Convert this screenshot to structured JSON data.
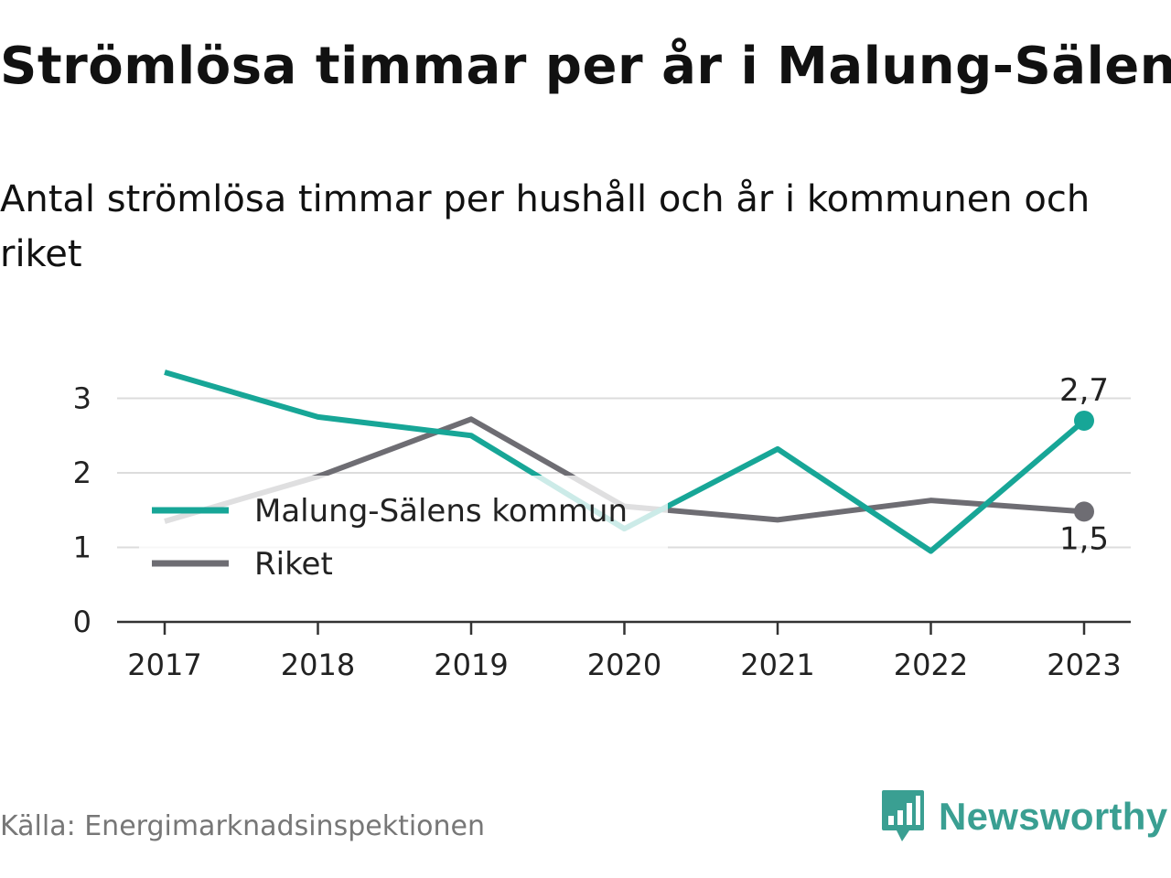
{
  "title": "Strömlösa timmar per år i Malung-Sälen",
  "subtitle": "Antal strömlösa timmar per hushåll och år i kommunen och riket",
  "source": "Källa: Energimarknadsinspektionen",
  "brand": "Newsworthy",
  "chart_data": {
    "type": "line",
    "x": [
      "2017",
      "2018",
      "2019",
      "2020",
      "2021",
      "2022",
      "2023"
    ],
    "ylim": [
      0,
      3.5
    ],
    "yticks": [
      "0",
      "1",
      "2",
      "3"
    ],
    "grid": true,
    "legend_position": "left",
    "series": [
      {
        "name": "Malung-Sälens kommun",
        "color": "#17a697",
        "values": [
          3.35,
          2.75,
          2.5,
          1.25,
          2.32,
          0.95,
          2.7
        ],
        "end_label": "2,7"
      },
      {
        "name": "Riket",
        "color": "#6e6d73",
        "values": [
          1.35,
          1.95,
          2.72,
          1.55,
          1.37,
          1.63,
          1.48
        ],
        "end_label": "1,5"
      }
    ]
  }
}
